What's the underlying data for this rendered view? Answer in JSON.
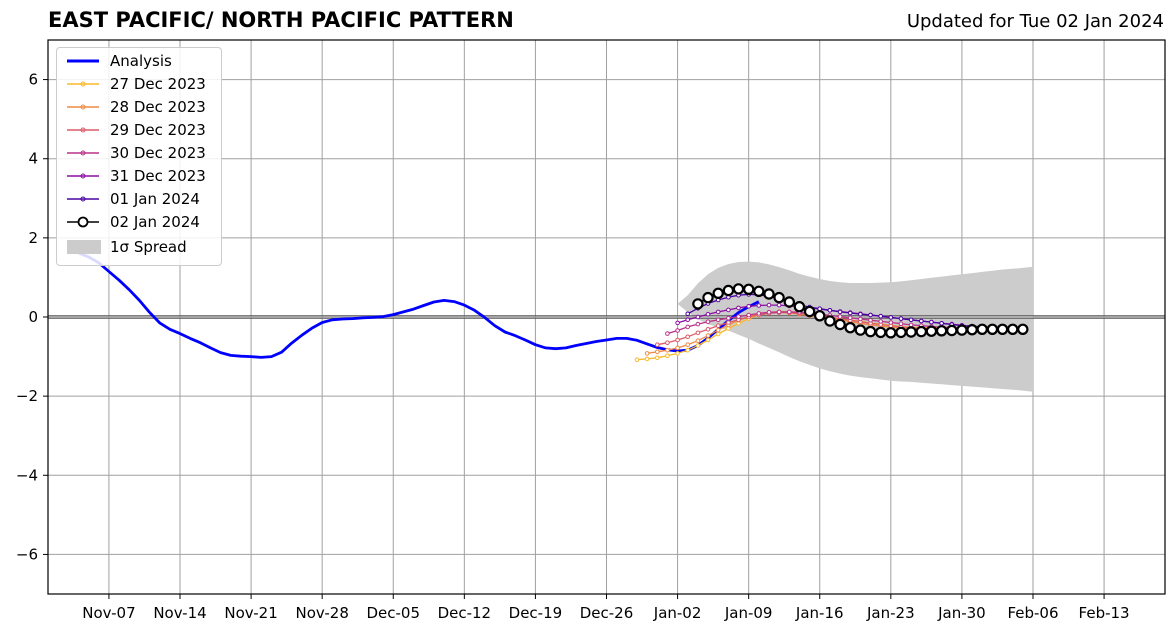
{
  "header": {
    "title": "EAST PACIFIC/ NORTH PACIFIC PATTERN",
    "updated": "Updated for Tue 02 Jan 2024"
  },
  "legend": {
    "placement": "top-left",
    "items": [
      {
        "label": "Analysis",
        "color": "#0000ff",
        "style": "line-thick"
      },
      {
        "label": "27 Dec 2023",
        "color": "#f8b92b",
        "style": "line-dot"
      },
      {
        "label": "28 Dec 2023",
        "color": "#ef8a45",
        "style": "line-dot"
      },
      {
        "label": "29 Dec 2023",
        "color": "#db5c68",
        "style": "line-dot"
      },
      {
        "label": "30 Dec 2023",
        "color": "#b93289",
        "style": "line-dot"
      },
      {
        "label": "31 Dec 2023",
        "color": "#8a0fa4",
        "style": "line-dot"
      },
      {
        "label": "01 Jan 2024",
        "color": "#4b03a1",
        "style": "line-dot"
      },
      {
        "label": "02 Jan 2024",
        "color": "#000000",
        "style": "line-circle"
      },
      {
        "label": "1σ Spread",
        "color": "#cccccc",
        "style": "patch"
      }
    ]
  },
  "chart_data": {
    "type": "line",
    "title": "EAST PACIFIC/ NORTH PACIFIC PATTERN",
    "xlabel": "",
    "ylabel": "",
    "x_range": [
      "2023-11-01",
      "2024-02-19"
    ],
    "ylim": [
      -7,
      7
    ],
    "yticks": [
      -6,
      -4,
      -2,
      0,
      2,
      4,
      6
    ],
    "ytick_labels": [
      "−6",
      "−4",
      "−2",
      "0",
      "2",
      "4",
      "6"
    ],
    "xticks": [
      "2023-11-07",
      "2023-11-14",
      "2023-11-21",
      "2023-11-28",
      "2023-12-05",
      "2023-12-12",
      "2023-12-19",
      "2023-12-26",
      "2024-01-02",
      "2024-01-09",
      "2024-01-16",
      "2024-01-23",
      "2024-01-30",
      "2024-02-06",
      "2024-02-13"
    ],
    "xtick_labels": [
      "Nov-07",
      "Nov-14",
      "Nov-21",
      "Nov-28",
      "Dec-05",
      "Dec-12",
      "Dec-19",
      "Dec-26",
      "Jan-02",
      "Jan-09",
      "Jan-16",
      "Jan-23",
      "Jan-30",
      "Feb-06",
      "Feb-13"
    ],
    "grid": true,
    "zero_line": true,
    "analysis": {
      "name": "Analysis",
      "start": "2023-11-03",
      "values": [
        1.71,
        1.62,
        1.52,
        1.37,
        1.15,
        0.93,
        0.69,
        0.42,
        0.12,
        -0.15,
        -0.31,
        -0.42,
        -0.54,
        -0.65,
        -0.78,
        -0.9,
        -0.97,
        -0.99,
        -1.0,
        -1.02,
        -1.0,
        -0.89,
        -0.66,
        -0.46,
        -0.28,
        -0.14,
        -0.07,
        -0.05,
        -0.04,
        -0.02,
        -0.01,
        0.01,
        0.06,
        0.13,
        0.2,
        0.29,
        0.38,
        0.42,
        0.39,
        0.3,
        0.17,
        -0.01,
        -0.22,
        -0.38,
        -0.47,
        -0.58,
        -0.7,
        -0.78,
        -0.8,
        -0.78,
        -0.72,
        -0.67,
        -0.62,
        -0.58,
        -0.54,
        -0.54,
        -0.59,
        -0.68,
        -0.77,
        -0.83,
        -0.86,
        -0.84,
        -0.72,
        -0.53,
        -0.31,
        -0.09,
        0.11,
        0.26,
        0.39
      ]
    },
    "forecasts": [
      {
        "name": "27 Dec 2023",
        "start": "2023-12-29",
        "values": [
          -1.08,
          -1.06,
          -1.03,
          -0.98,
          -0.92,
          -0.84,
          -0.72,
          -0.58,
          -0.43,
          -0.29,
          -0.16,
          -0.04,
          0.05,
          0.11,
          0.14,
          0.13,
          0.1,
          0.06,
          0.02,
          -0.01,
          -0.04,
          -0.08,
          -0.11,
          -0.15,
          -0.18,
          -0.21,
          -0.24,
          -0.26,
          -0.27,
          -0.27,
          -0.27,
          -0.25
        ]
      },
      {
        "name": "28 Dec 2023",
        "start": "2023-12-30",
        "values": [
          -0.92,
          -0.88,
          -0.84,
          -0.78,
          -0.7,
          -0.6,
          -0.47,
          -0.33,
          -0.2,
          -0.08,
          0.01,
          0.07,
          0.11,
          0.12,
          0.1,
          0.07,
          0.03,
          0.0,
          -0.04,
          -0.08,
          -0.12,
          -0.16,
          -0.2,
          -0.23,
          -0.26,
          -0.28,
          -0.29,
          -0.3,
          -0.3,
          -0.3,
          -0.29,
          -0.27
        ]
      },
      {
        "name": "29 Dec 2023",
        "start": "2023-12-31",
        "values": [
          -0.7,
          -0.65,
          -0.58,
          -0.5,
          -0.4,
          -0.31,
          -0.22,
          -0.14,
          -0.07,
          0.0,
          0.05,
          0.09,
          0.11,
          0.11,
          0.09,
          0.06,
          0.03,
          -0.01,
          -0.04,
          -0.08,
          -0.12,
          -0.16,
          -0.19,
          -0.22,
          -0.25,
          -0.27,
          -0.29,
          -0.3,
          -0.3,
          -0.3,
          -0.29,
          -0.28
        ]
      },
      {
        "name": "30 Dec 2023",
        "start": "2024-01-01",
        "values": [
          -0.42,
          -0.34,
          -0.25,
          -0.18,
          -0.12,
          -0.07,
          -0.03,
          0.01,
          0.05,
          0.09,
          0.12,
          0.13,
          0.13,
          0.12,
          0.1,
          0.07,
          0.04,
          0.01,
          -0.02,
          -0.05,
          -0.08,
          -0.11,
          -0.14,
          -0.17,
          -0.2,
          -0.22,
          -0.24,
          -0.26,
          -0.27,
          -0.28,
          -0.28,
          -0.28
        ]
      },
      {
        "name": "31 Dec 2023",
        "start": "2024-01-02",
        "values": [
          -0.15,
          -0.07,
          0.0,
          0.07,
          0.13,
          0.18,
          0.23,
          0.27,
          0.29,
          0.3,
          0.3,
          0.28,
          0.26,
          0.23,
          0.2,
          0.17,
          0.14,
          0.11,
          0.08,
          0.05,
          0.02,
          -0.01,
          -0.04,
          -0.07,
          -0.1,
          -0.13,
          -0.16,
          -0.18,
          -0.21,
          -0.23,
          -0.25,
          -0.27
        ]
      },
      {
        "name": "01 Jan 2024",
        "start": "2024-01-03",
        "values": [
          0.08,
          0.22,
          0.34,
          0.43,
          0.5,
          0.55,
          0.57,
          0.56,
          0.52,
          0.46,
          0.38,
          0.31,
          0.25,
          0.21,
          0.17,
          0.13,
          0.1,
          0.07,
          0.05,
          0.02,
          -0.01,
          -0.04,
          -0.07,
          -0.1,
          -0.13,
          -0.16,
          -0.19,
          -0.22,
          -0.25,
          -0.27,
          -0.3,
          -0.32
        ]
      },
      {
        "name": "02 Jan 2024",
        "start": "2024-01-04",
        "values": [
          0.33,
          0.49,
          0.6,
          0.67,
          0.71,
          0.7,
          0.65,
          0.58,
          0.49,
          0.38,
          0.26,
          0.14,
          0.03,
          -0.1,
          -0.19,
          -0.27,
          -0.33,
          -0.37,
          -0.39,
          -0.4,
          -0.39,
          -0.38,
          -0.37,
          -0.36,
          -0.35,
          -0.34,
          -0.33,
          -0.32,
          -0.31,
          -0.31,
          -0.31,
          -0.31,
          -0.31
        ]
      }
    ],
    "spread": {
      "name": "1σ Spread",
      "start": "2024-01-02",
      "upper": [
        0.33,
        0.55,
        0.85,
        1.08,
        1.24,
        1.34,
        1.39,
        1.4,
        1.38,
        1.33,
        1.26,
        1.18,
        1.09,
        1.02,
        0.96,
        0.91,
        0.88,
        0.86,
        0.86,
        0.86,
        0.87,
        0.88,
        0.9,
        0.93,
        0.96,
        0.99,
        1.02,
        1.05,
        1.08,
        1.11,
        1.14,
        1.17,
        1.2,
        1.22,
        1.24,
        1.27
      ],
      "lower": [
        0.33,
        0.12,
        -0.06,
        -0.18,
        -0.26,
        -0.34,
        -0.45,
        -0.55,
        -0.67,
        -0.78,
        -0.89,
        -1.01,
        -1.12,
        -1.21,
        -1.3,
        -1.37,
        -1.43,
        -1.48,
        -1.52,
        -1.55,
        -1.58,
        -1.61,
        -1.63,
        -1.64,
        -1.66,
        -1.68,
        -1.7,
        -1.72,
        -1.74,
        -1.76,
        -1.78,
        -1.8,
        -1.82,
        -1.84,
        -1.86,
        -1.89
      ]
    }
  }
}
